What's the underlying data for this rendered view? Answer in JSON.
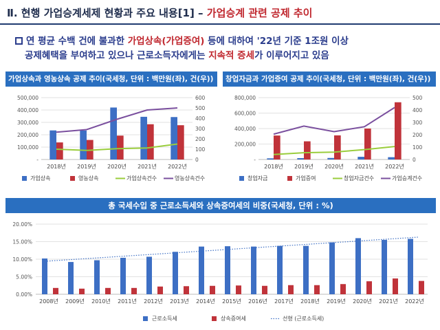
{
  "page": {
    "title_prefix": "Ⅱ. 현행 가업승계세제 현황과 주요 내용[1] – ",
    "title_accent": "가업승계 관련 공제 추이",
    "summary": {
      "l1a": "연 평균 수백 건에 불과한 ",
      "l1b": "가업상속(가업증여)",
      "l1c": " 등에 대하여 '22년 기준 1조원 이상",
      "l2a": "공제혜택을 부여하고 있으나 근로소득자에게는 ",
      "l2b": "지속적 증세",
      "l2c": "가 이루어지고 있음"
    },
    "colors": {
      "blue": "#3d6fc4",
      "red": "#c0333a",
      "green": "#9acd3c",
      "purple": "#7a4f9e",
      "header": "#2a6fc0",
      "navy": "#1f3b70"
    }
  },
  "chart_data": [
    {
      "type": "bar",
      "title": "가업상속과 영농상속 공제 추이(국세청, 단위 : 백만원(좌), 건(우))",
      "categories": [
        "2018년",
        "2019년",
        "2020년",
        "2021년",
        "2022년"
      ],
      "ylim": [
        0,
        500000
      ],
      "yticks": [
        "-",
        "100,000",
        "200,000",
        "300,000",
        "400,000",
        "500,000"
      ],
      "y2lim": [
        0,
        600
      ],
      "y2ticks": [
        "0",
        "100",
        "200",
        "300",
        "400",
        "500",
        "600"
      ],
      "series": [
        {
          "name": "가업상속",
          "axis": "left",
          "kind": "bar",
          "values": [
            235000,
            234000,
            420000,
            345000,
            343000
          ]
        },
        {
          "name": "영농상속",
          "axis": "left",
          "kind": "bar",
          "values": [
            138000,
            158000,
            193000,
            285000,
            277000
          ]
        },
        {
          "name": "가업상속건수",
          "axis": "right",
          "kind": "line",
          "values": [
            100,
            88,
            105,
            112,
            150
          ]
        },
        {
          "name": "영농상속건수",
          "axis": "right",
          "kind": "line",
          "values": [
            265,
            290,
            390,
            480,
            500
          ]
        }
      ]
    },
    {
      "type": "bar",
      "title": "창업자금과 가업증여 공제 추이(국세청, 단위 : 백만원(좌), 건(우))",
      "categories": [
        "2018년",
        "2019년",
        "2020년",
        "2021년",
        "2022년"
      ],
      "ylim": [
        0,
        800000
      ],
      "yticks": [
        "-",
        "200,000",
        "400,000",
        "600,000",
        "800,000"
      ],
      "y2lim": [
        0,
        500
      ],
      "y2ticks": [
        "0",
        "100",
        "200",
        "300",
        "400",
        "500"
      ],
      "series": [
        {
          "name": "창업자금",
          "axis": "left",
          "kind": "bar",
          "values": [
            15000,
            18000,
            20000,
            35000,
            30000
          ]
        },
        {
          "name": "가업증여",
          "axis": "left",
          "kind": "bar",
          "values": [
            310000,
            235000,
            312000,
            400000,
            740000
          ]
        },
        {
          "name": "창업자금건수",
          "axis": "right",
          "kind": "line",
          "values": [
            40,
            55,
            60,
            80,
            105
          ]
        },
        {
          "name": "가업승계건수",
          "axis": "right",
          "kind": "line",
          "values": [
            205,
            270,
            225,
            265,
            420
          ]
        }
      ]
    },
    {
      "type": "bar",
      "title": "총 국세수입 중 근로소득세와 상속증여세의 비중(국세청, 단위 : %)",
      "categories": [
        "2008년",
        "2009년",
        "2010년",
        "2011년",
        "2012년",
        "2013년",
        "2014년",
        "2015년",
        "2016년",
        "2017년",
        "2018년",
        "2019년",
        "2020년",
        "2021년",
        "2022년"
      ],
      "ylim": [
        0,
        20
      ],
      "yticks": [
        "0.00%",
        "5.00%",
        "10.00%",
        "15.00%",
        "20.00%"
      ],
      "series": [
        {
          "name": "근로소득세",
          "kind": "bar",
          "values": [
            10.2,
            9.2,
            9.7,
            10.4,
            10.7,
            12.1,
            13.6,
            13.7,
            13.6,
            13.8,
            13.8,
            14.8,
            16.0,
            15.5,
            15.8
          ]
        },
        {
          "name": "상속증여세",
          "kind": "bar",
          "values": [
            1.8,
            1.6,
            1.8,
            1.8,
            2.2,
            2.3,
            2.4,
            2.5,
            2.4,
            2.6,
            2.6,
            2.9,
            3.7,
            4.5,
            3.8
          ]
        }
      ],
      "trendline": {
        "name": "선형 (근로소득세)",
        "start": 9.4,
        "end": 16.3
      }
    }
  ]
}
